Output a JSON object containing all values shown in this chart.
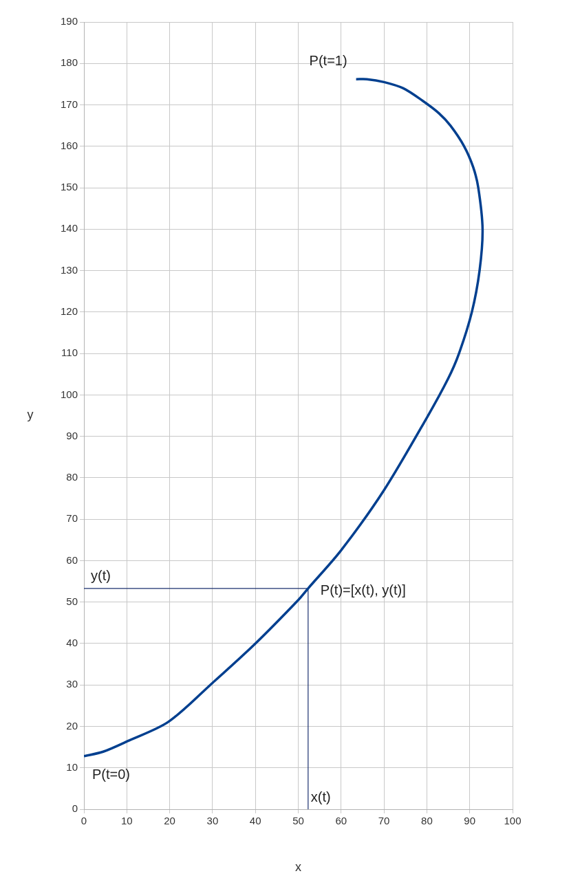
{
  "chart_data": {
    "type": "line",
    "xlabel": "x",
    "ylabel": "y",
    "xlim": [
      0,
      100
    ],
    "ylim": [
      0,
      190
    ],
    "xticks": [
      0,
      10,
      20,
      30,
      40,
      50,
      60,
      70,
      80,
      90,
      100
    ],
    "yticks": [
      0,
      10,
      20,
      30,
      40,
      50,
      60,
      70,
      80,
      90,
      100,
      110,
      120,
      130,
      140,
      150,
      160,
      170,
      180,
      190
    ],
    "grid": true,
    "marker": "none",
    "series": [
      {
        "color": "#003f8f",
        "x": [
          0,
          4.5,
          10.1,
          19.7,
          30,
          40,
          50,
          52.3,
          60,
          70,
          80,
          85,
          87.5,
          90.5,
          92.3,
          93,
          92,
          90.8,
          88.7,
          85.5,
          82.8,
          79,
          74.5,
          70,
          66,
          63.5
        ],
        "values": [
          12.8,
          13.9,
          16.4,
          21.1,
          30.5,
          40,
          50.5,
          53.3,
          62.5,
          77,
          94.5,
          104,
          110,
          120,
          130,
          140,
          150,
          155,
          160,
          165,
          168,
          171,
          174,
          175.5,
          176.2,
          176.2
        ]
      },
      {
        "color": "#1a2f6e",
        "x": [
          0,
          52.3,
          52.3
        ],
        "values": [
          53.3,
          53.3,
          0
        ]
      }
    ],
    "annotations": [
      {
        "text": "P(t=1)",
        "x": 63.5,
        "y": 176.2
      },
      {
        "text": "P(t=0)",
        "x": 0,
        "y": 12.8
      },
      {
        "text": "y(t)",
        "x": 0,
        "y": 53.3
      },
      {
        "text": "x(t)",
        "x": 52.3,
        "y": 0
      },
      {
        "text": "P(t)=[x(t), y(t)]",
        "x": 52.3,
        "y": 53.3
      }
    ]
  }
}
